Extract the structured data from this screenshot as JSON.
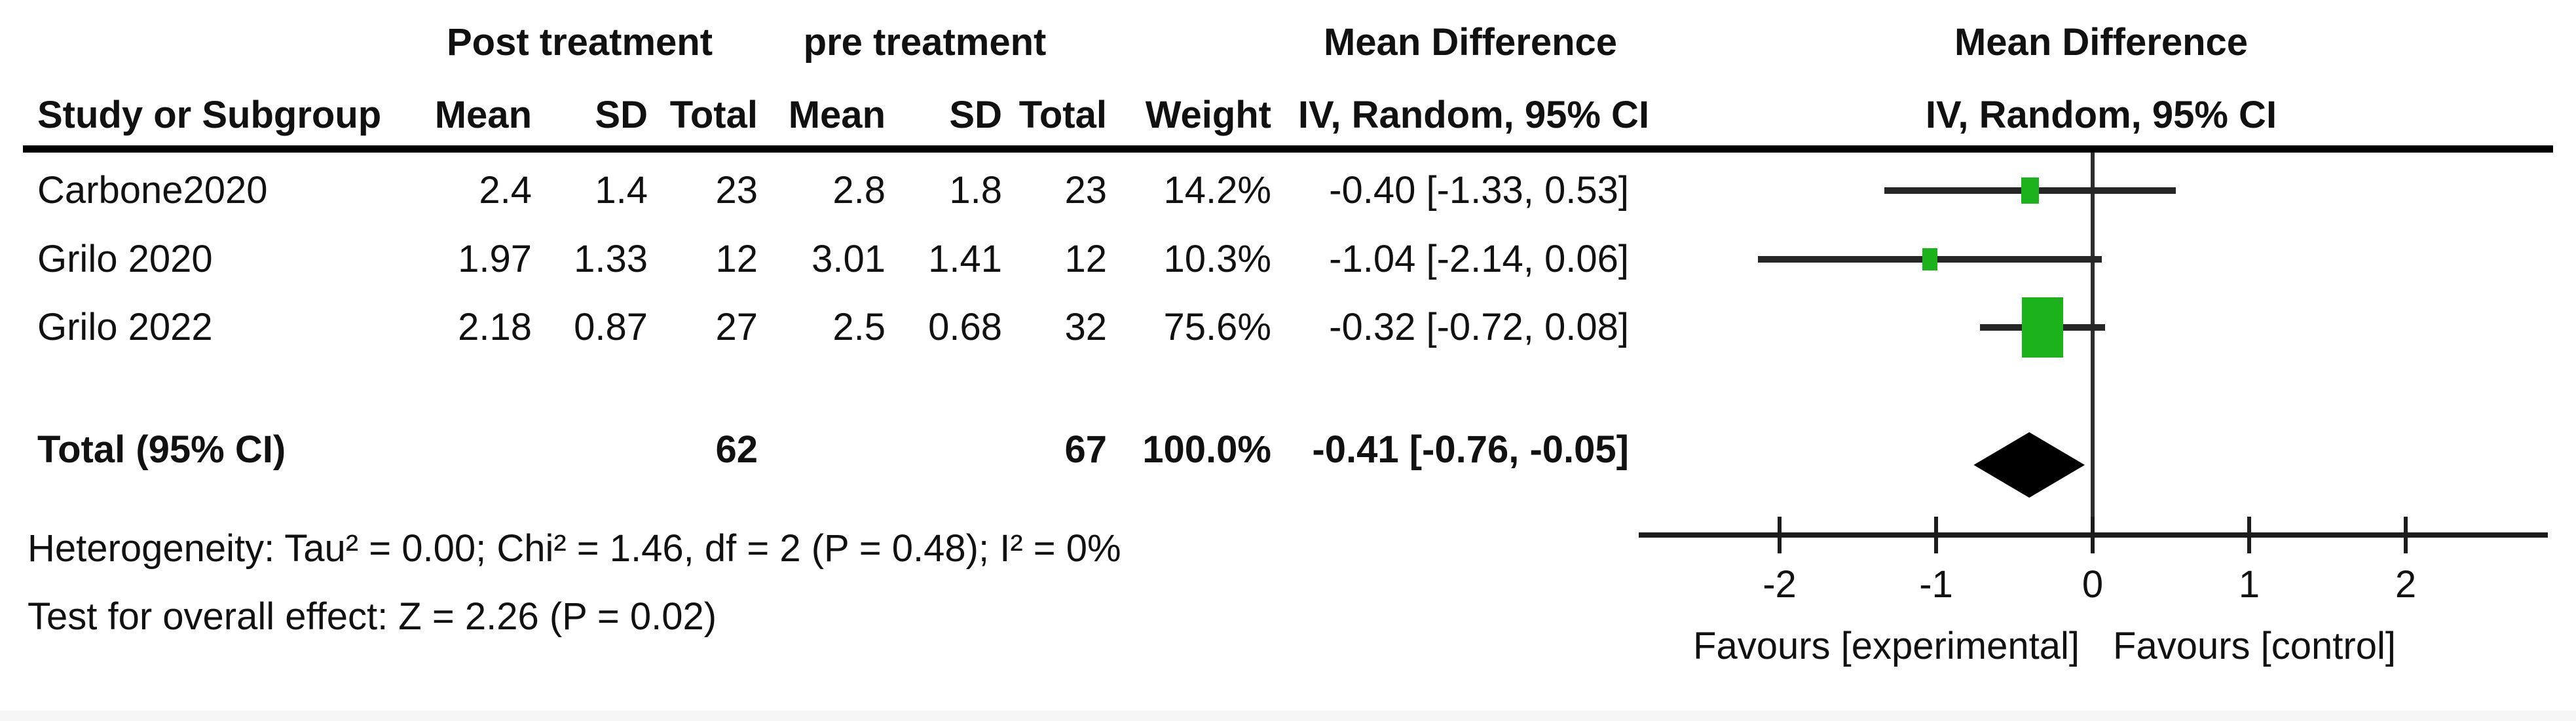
{
  "table": {
    "group_headers": {
      "post": "Post treatment",
      "pre": "pre treatment",
      "md_left": "Mean Difference",
      "md_right": "Mean Difference"
    },
    "columns": {
      "study": "Study or Subgroup",
      "mean": "Mean",
      "sd": "SD",
      "total": "Total",
      "weight": "Weight",
      "ci": "IV, Random, 95% CI",
      "ci_right": "IV, Random, 95% CI"
    }
  },
  "chart_data": {
    "type": "scatter",
    "subtype": "forest-plot",
    "effect_measure": "Mean Difference, IV, Random, 95% CI",
    "studies": [
      {
        "name": "Carbone2020",
        "post": {
          "mean": "2.4",
          "sd": "1.4",
          "total": "23"
        },
        "pre": {
          "mean": "2.8",
          "sd": "1.8",
          "total": "23"
        },
        "weight": "14.2%",
        "weight_pct": 14.2,
        "md": -0.4,
        "ci_low": -1.33,
        "ci_high": 0.53,
        "md_label": "-0.40 [-1.33, 0.53]"
      },
      {
        "name": "Grilo 2020",
        "post": {
          "mean": "1.97",
          "sd": "1.33",
          "total": "12"
        },
        "pre": {
          "mean": "3.01",
          "sd": "1.41",
          "total": "12"
        },
        "weight": "10.3%",
        "weight_pct": 10.3,
        "md": -1.04,
        "ci_low": -2.14,
        "ci_high": 0.06,
        "md_label": "-1.04 [-2.14, 0.06]"
      },
      {
        "name": "Grilo 2022",
        "post": {
          "mean": "2.18",
          "sd": "0.87",
          "total": "27"
        },
        "pre": {
          "mean": "2.5",
          "sd": "0.68",
          "total": "32"
        },
        "weight": "75.6%",
        "weight_pct": 75.6,
        "md": -0.32,
        "ci_low": -0.72,
        "ci_high": 0.08,
        "md_label": "-0.32 [-0.72, 0.08]"
      }
    ],
    "total": {
      "label": "Total (95% CI)",
      "post_total": "62",
      "pre_total": "67",
      "weight": "100.0%",
      "md": -0.41,
      "ci_low": -0.76,
      "ci_high": -0.05,
      "md_label": "-0.41 [-0.76, -0.05]"
    },
    "footnotes": {
      "heterogeneity": "Heterogeneity: Tau² = 0.00; Chi² = 1.46, df = 2 (P = 0.48); I² = 0%",
      "overall_effect": "Test for overall effect: Z = 2.26 (P = 0.02)"
    },
    "axis": {
      "ticks": [
        -2,
        -1,
        0,
        1,
        2
      ],
      "tick_labels": [
        "-2",
        "-1",
        "0",
        "1",
        "2"
      ],
      "xlim": [
        -2.9,
        2.91
      ],
      "label_left": "Favours [experimental]",
      "label_right": "Favours [control]"
    },
    "colors": {
      "marker_green": "#1cb21c",
      "diamond_black": "#000000",
      "line_dark": "#262626"
    }
  }
}
